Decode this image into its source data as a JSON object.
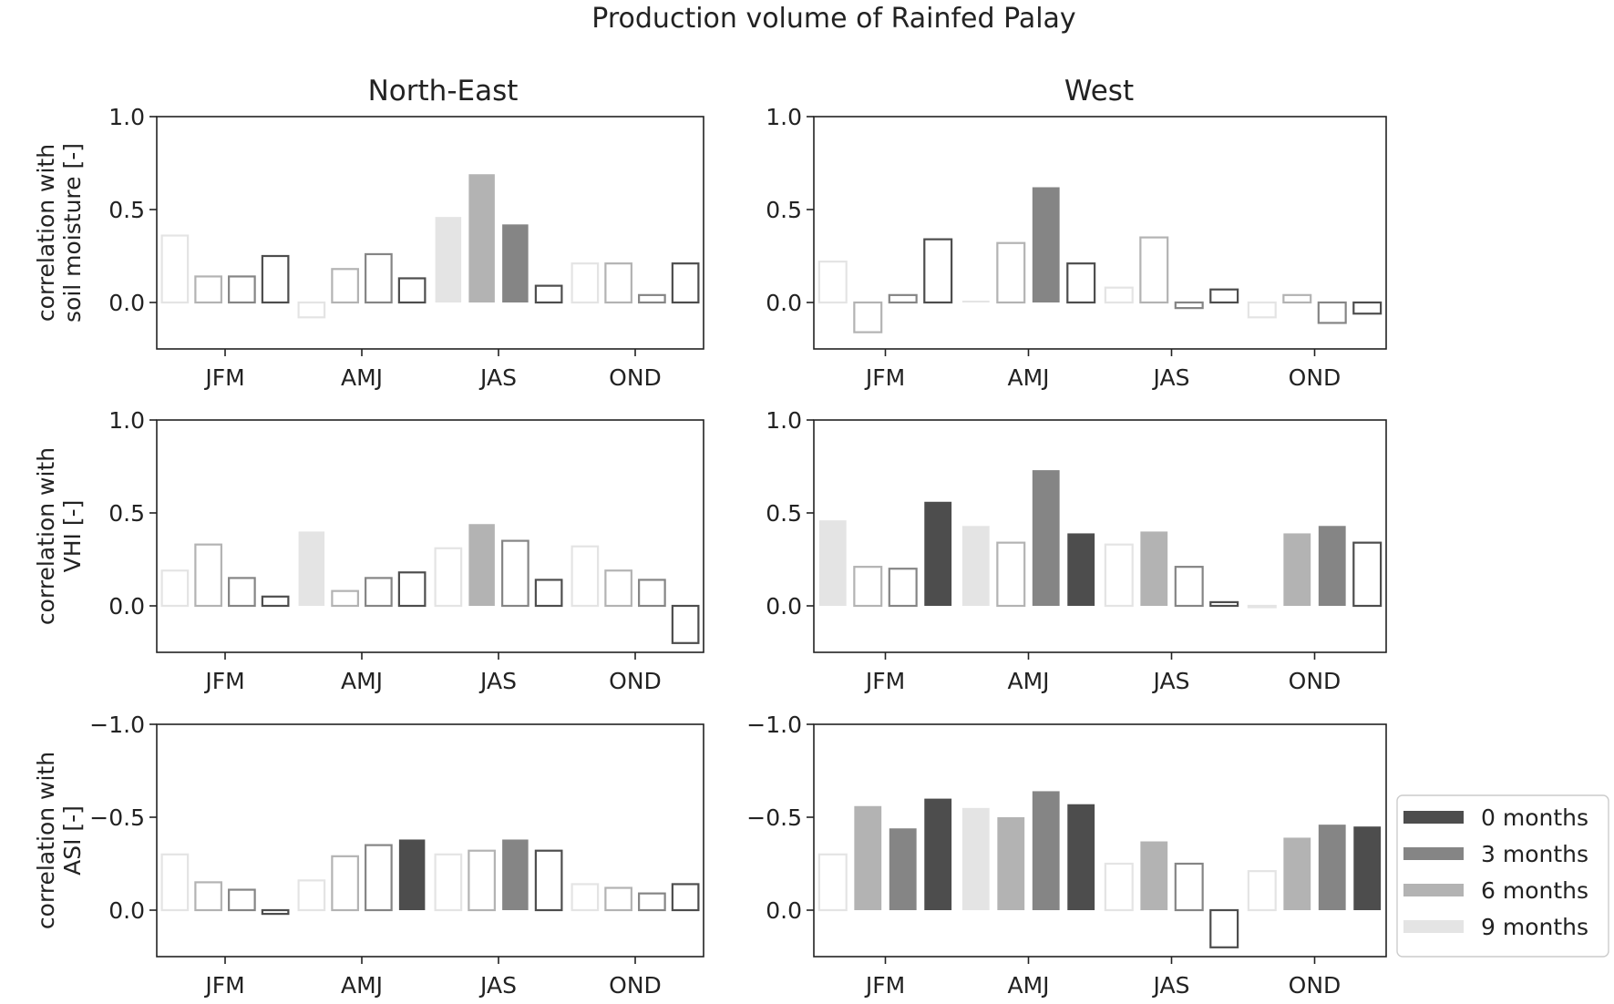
{
  "figure_title": "Production volume of Rainfed Palay",
  "column_titles": [
    "North-East",
    "West"
  ],
  "row_ylabels": [
    [
      "correlation with",
      "soil moisture [-]"
    ],
    [
      "correlation with",
      "VHI [-]"
    ],
    [
      "correlation with",
      "ASI [-]"
    ]
  ],
  "legend": {
    "entries": [
      {
        "label": "0 months",
        "color": "#4d4d4d"
      },
      {
        "label": "3 months",
        "color": "#858585"
      },
      {
        "label": "6 months",
        "color": "#b3b3b3"
      },
      {
        "label": "9 months",
        "color": "#e4e4e4"
      }
    ],
    "placement": "right of bottom-right panel"
  },
  "chart_data": [
    {
      "type": "bar",
      "panel": "north-east-soil-moisture",
      "categories": [
        "JFM",
        "AMJ",
        "JAS",
        "OND"
      ],
      "series_order": [
        "9 months",
        "6 months",
        "3 months",
        "0 months"
      ],
      "values": [
        [
          0.36,
          0.14,
          0.14,
          0.25
        ],
        [
          -0.08,
          0.18,
          0.26,
          0.13
        ],
        [
          0.46,
          0.69,
          0.42,
          0.09
        ],
        [
          0.21,
          0.21,
          0.04,
          0.21
        ]
      ],
      "filled": [
        [
          false,
          false,
          false,
          false
        ],
        [
          false,
          false,
          false,
          false
        ],
        [
          true,
          true,
          true,
          false
        ],
        [
          false,
          false,
          false,
          false
        ]
      ],
      "ylim": [
        -0.25,
        1.0
      ],
      "inverted": false,
      "yticks": [
        1.0,
        0.5,
        0.0
      ],
      "ytick_labels": [
        "1.0",
        "0.5",
        "0.0"
      ],
      "title": "North-East",
      "ylabel": "correlation with soil moisture [-]"
    },
    {
      "type": "bar",
      "panel": "west-soil-moisture",
      "categories": [
        "JFM",
        "AMJ",
        "JAS",
        "OND"
      ],
      "series_order": [
        "9 months",
        "6 months",
        "3 months",
        "0 months"
      ],
      "values": [
        [
          0.22,
          -0.16,
          0.04,
          0.34
        ],
        [
          0.01,
          0.32,
          0.62,
          0.21
        ],
        [
          0.08,
          0.35,
          -0.03,
          0.07
        ],
        [
          -0.08,
          0.04,
          -0.11,
          -0.06
        ]
      ],
      "filled": [
        [
          false,
          false,
          false,
          false
        ],
        [
          true,
          false,
          true,
          false
        ],
        [
          false,
          false,
          false,
          false
        ],
        [
          false,
          false,
          false,
          false
        ]
      ],
      "ylim": [
        -0.25,
        1.0
      ],
      "inverted": false,
      "yticks": [
        1.0,
        0.5,
        0.0
      ],
      "ytick_labels": [
        "1.0",
        "0.5",
        "0.0"
      ],
      "title": "West",
      "ylabel": ""
    },
    {
      "type": "bar",
      "panel": "north-east-vhi",
      "categories": [
        "JFM",
        "AMJ",
        "JAS",
        "OND"
      ],
      "series_order": [
        "9 months",
        "6 months",
        "3 months",
        "0 months"
      ],
      "values": [
        [
          0.19,
          0.33,
          0.15,
          0.05
        ],
        [
          0.4,
          0.08,
          0.15,
          0.18
        ],
        [
          0.31,
          0.44,
          0.35,
          0.14
        ],
        [
          0.32,
          0.19,
          0.14,
          -0.2
        ]
      ],
      "filled": [
        [
          false,
          false,
          false,
          false
        ],
        [
          true,
          false,
          false,
          false
        ],
        [
          false,
          true,
          false,
          false
        ],
        [
          false,
          false,
          false,
          false
        ]
      ],
      "ylim": [
        -0.25,
        1.0
      ],
      "inverted": false,
      "yticks": [
        1.0,
        0.5,
        0.0
      ],
      "ytick_labels": [
        "1.0",
        "0.5",
        "0.0"
      ],
      "title": "",
      "ylabel": "correlation with VHI [-]"
    },
    {
      "type": "bar",
      "panel": "west-vhi",
      "categories": [
        "JFM",
        "AMJ",
        "JAS",
        "OND"
      ],
      "series_order": [
        "9 months",
        "6 months",
        "3 months",
        "0 months"
      ],
      "values": [
        [
          0.46,
          0.21,
          0.2,
          0.56
        ],
        [
          0.43,
          0.34,
          0.73,
          0.39
        ],
        [
          0.33,
          0.4,
          0.21,
          0.02
        ],
        [
          0.0,
          0.39,
          0.43,
          0.34
        ]
      ],
      "filled": [
        [
          true,
          false,
          false,
          true
        ],
        [
          true,
          false,
          true,
          true
        ],
        [
          false,
          true,
          false,
          false
        ],
        [
          false,
          true,
          true,
          false
        ]
      ],
      "ylim": [
        -0.25,
        1.0
      ],
      "inverted": false,
      "yticks": [
        1.0,
        0.5,
        0.0
      ],
      "ytick_labels": [
        "1.0",
        "0.5",
        "0.0"
      ],
      "title": "",
      "ylabel": ""
    },
    {
      "type": "bar",
      "panel": "north-east-asi",
      "categories": [
        "JFM",
        "AMJ",
        "JAS",
        "OND"
      ],
      "series_order": [
        "9 months",
        "6 months",
        "3 months",
        "0 months"
      ],
      "values": [
        [
          -0.3,
          -0.15,
          -0.11,
          0.02
        ],
        [
          -0.16,
          -0.29,
          -0.35,
          -0.38
        ],
        [
          -0.3,
          -0.32,
          -0.38,
          -0.32
        ],
        [
          -0.14,
          -0.12,
          -0.09,
          -0.14
        ]
      ],
      "filled": [
        [
          false,
          false,
          false,
          false
        ],
        [
          false,
          false,
          false,
          true
        ],
        [
          false,
          false,
          true,
          false
        ],
        [
          false,
          false,
          false,
          false
        ]
      ],
      "ylim": [
        0.25,
        -1.0
      ],
      "inverted": true,
      "yticks": [
        -1.0,
        -0.5,
        0.0
      ],
      "ytick_labels": [
        "−1.0",
        "−0.5",
        "0.0"
      ],
      "title": "",
      "ylabel": "correlation with ASI [-]"
    },
    {
      "type": "bar",
      "panel": "west-asi",
      "categories": [
        "JFM",
        "AMJ",
        "JAS",
        "OND"
      ],
      "series_order": [
        "9 months",
        "6 months",
        "3 months",
        "0 months"
      ],
      "values": [
        [
          -0.3,
          -0.56,
          -0.44,
          -0.6
        ],
        [
          -0.55,
          -0.5,
          -0.64,
          -0.57
        ],
        [
          -0.25,
          -0.37,
          -0.25,
          0.2
        ],
        [
          -0.21,
          -0.39,
          -0.46,
          -0.45
        ]
      ],
      "filled": [
        [
          false,
          true,
          true,
          true
        ],
        [
          true,
          true,
          true,
          true
        ],
        [
          false,
          true,
          false,
          false
        ],
        [
          false,
          true,
          true,
          true
        ]
      ],
      "ylim": [
        0.25,
        -1.0
      ],
      "inverted": true,
      "yticks": [
        -1.0,
        -0.5,
        0.0
      ],
      "ytick_labels": [
        "−1.0",
        "−0.5",
        "0.0"
      ],
      "title": "",
      "ylabel": ""
    }
  ]
}
